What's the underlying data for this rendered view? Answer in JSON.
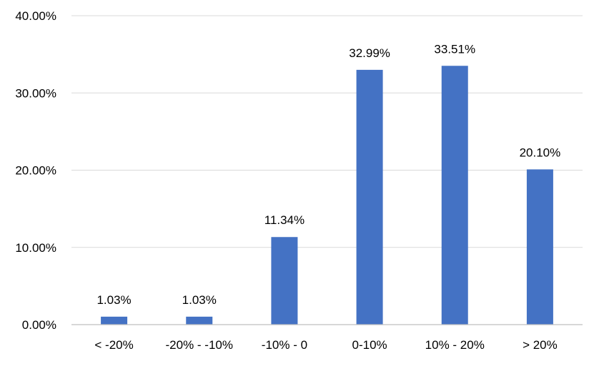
{
  "chart_data": {
    "type": "bar",
    "title": "",
    "xlabel": "",
    "ylabel": "",
    "categories": [
      "< -20%",
      "-20% - -10%",
      "-10% - 0",
      "0-10%",
      "10% - 20%",
      "> 20%"
    ],
    "values": [
      1.03,
      1.03,
      11.34,
      32.99,
      33.51,
      20.1
    ],
    "data_labels": [
      "1.03%",
      "1.03%",
      "11.34%",
      "32.99%",
      "33.51%",
      "20.10%"
    ],
    "ylim": [
      0,
      40
    ],
    "yticks": [
      0,
      10,
      20,
      30,
      40
    ],
    "ytick_labels": [
      "0.00%",
      "10.00%",
      "20.00%",
      "30.00%",
      "40.00%"
    ],
    "grid": true,
    "legend": "none",
    "bar_color": "#4472c4"
  }
}
